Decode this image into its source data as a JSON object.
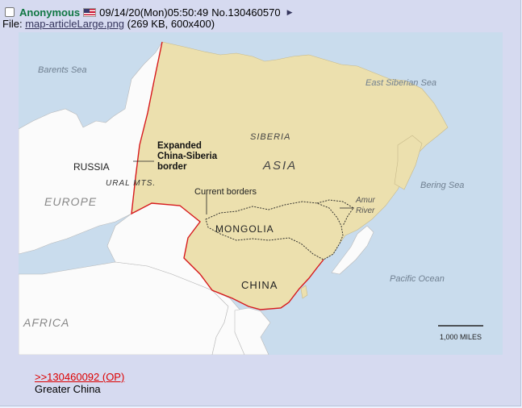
{
  "post": {
    "name": "Anonymous",
    "datetime": "09/14/20(Mon)05:50:49",
    "number": "No.130460570",
    "file_label": "File:",
    "file_name": "map-articleLarge.png",
    "file_meta": "(269 KB, 600x400)",
    "quote": ">>130460092 (OP)",
    "message": "Greater China"
  },
  "map": {
    "seas": {
      "barents": "Barents Sea",
      "east_siberian": "East Siberian Sea",
      "bering": "Bering Sea",
      "pacific": "Pacific Ocean"
    },
    "regions": {
      "russia": "RUSSIA",
      "europe": "EUROPE",
      "africa": "AFRICA",
      "siberia": "SIBERIA",
      "asia": "ASIA",
      "mongolia": "MONGOLIA",
      "china": "CHINA",
      "ural": "URAL MTS."
    },
    "annotations": {
      "expanded_line1": "Expanded",
      "expanded_line2": "China-Siberia",
      "expanded_line3": "border",
      "current_borders": "Current borders",
      "amur_line1": "Amur",
      "amur_line2": "River"
    },
    "scale": "1,000 MILES",
    "colors": {
      "ocean": "#c9dced",
      "land": "#fbfbfb",
      "expanded": "#ece0ae",
      "border_red": "#d7191c"
    }
  }
}
